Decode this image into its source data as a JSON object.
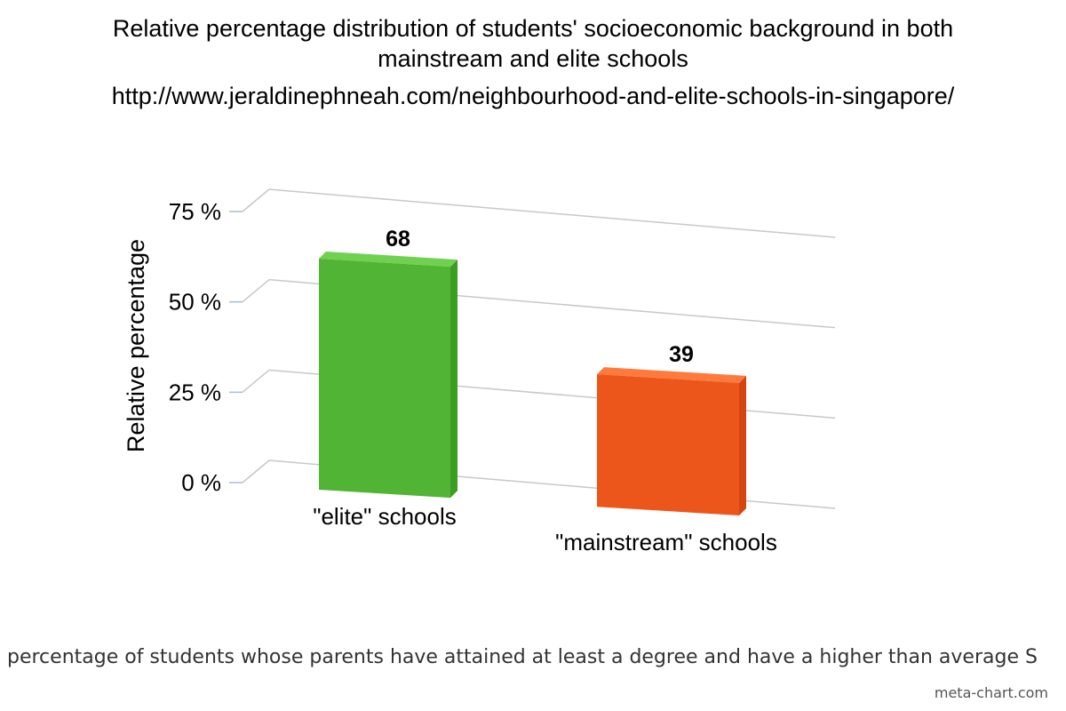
{
  "chart_data": {
    "type": "bar",
    "title": "Relative percentage distribution of students' socioeconomic background in both mainstream and elite schools",
    "title_lines": [
      "Relative percentage distribution of students' socioeconomic background in both",
      "mainstream and elite schools"
    ],
    "subtitle": "http://www.jeraldinephneah.com/neighbourhood-and-elite-schools-in-singapore/",
    "ylabel": "Relative percentage",
    "xlabel": "percentage of students whose parents have attained at least a degree and have a higher than average S",
    "categories": [
      "\"elite\" schools",
      "\"mainstream\" schools"
    ],
    "values": [
      68,
      39
    ],
    "data_labels": [
      "68",
      "39"
    ],
    "y_ticks": [
      0,
      25,
      50,
      75
    ],
    "y_tick_labels": [
      "0 %",
      "25 %",
      "50 %",
      "75 %"
    ],
    "ylim": [
      0,
      75
    ],
    "grid": true,
    "legend": "none",
    "three_d": true,
    "colors": {
      "elite": "#52b434",
      "mainstream": "#ec561b",
      "grid": "#c8c8c8"
    }
  },
  "footer": {
    "credit": "meta-chart.com"
  }
}
